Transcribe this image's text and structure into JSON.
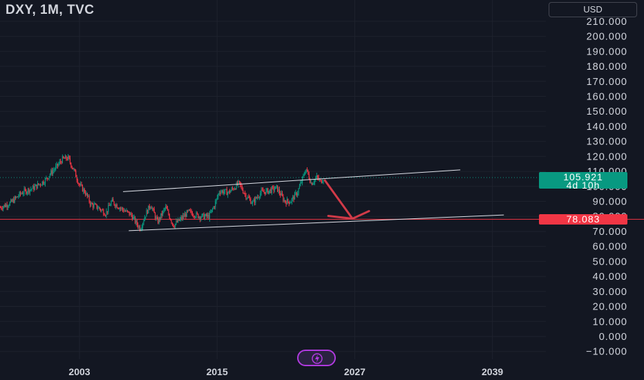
{
  "header": {
    "title": "DXY, 1M, TVC",
    "currency_label": "USD"
  },
  "price_badge": {
    "price": "105.921",
    "countdown": "4d 10h"
  },
  "level_badge": {
    "price": "78.083"
  },
  "colors": {
    "background": "#131722",
    "up": "#089981",
    "down": "#f23645",
    "grid": "#1e222d",
    "axis_text": "#d1d4dc",
    "arrow": "#d13a48",
    "bolt_button": "#b03adf"
  },
  "icons": {
    "bolt": "lightning-bolt-icon"
  },
  "chart_data": {
    "type": "candlestick",
    "symbol": "DXY",
    "interval": "1M",
    "source": "TVC",
    "y_ticks": [
      -10,
      0,
      10,
      20,
      30,
      40,
      50,
      60,
      70,
      80,
      90,
      100,
      110,
      120,
      130,
      140,
      150,
      160,
      170,
      180,
      190,
      200,
      210
    ],
    "y_tick_labels": [
      "−10.000",
      "0.000",
      "10.000",
      "20.000",
      "30.000",
      "40.000",
      "50.000",
      "60.000",
      "70.000",
      "80.000",
      "90.000",
      "100.000",
      "110.000",
      "120.000",
      "130.000",
      "140.000",
      "150.000",
      "160.000",
      "170.000",
      "180.000",
      "190.000",
      "200.000",
      "210.000"
    ],
    "x_ticks": [
      2003,
      2015,
      2027,
      2039
    ],
    "x_tick_labels": [
      "2003",
      "2015",
      "2027",
      "2039"
    ],
    "ylim": [
      -12,
      215
    ],
    "xlim": [
      1996.1,
      2043.0
    ],
    "last_price": 105.921,
    "horizontal_level": 78.083,
    "close_series": [
      {
        "t": 1996.1,
        "v": 86
      },
      {
        "t": 1997.0,
        "v": 89
      },
      {
        "t": 1998.0,
        "v": 96
      },
      {
        "t": 1999.0,
        "v": 99
      },
      {
        "t": 2000.0,
        "v": 104
      },
      {
        "t": 2000.5,
        "v": 109
      },
      {
        "t": 2001.0,
        "v": 113
      },
      {
        "t": 2001.5,
        "v": 118
      },
      {
        "t": 2002.0,
        "v": 119
      },
      {
        "t": 2002.5,
        "v": 111
      },
      {
        "t": 2003.0,
        "v": 101
      },
      {
        "t": 2003.5,
        "v": 96
      },
      {
        "t": 2004.0,
        "v": 88
      },
      {
        "t": 2004.6,
        "v": 86
      },
      {
        "t": 2005.3,
        "v": 82
      },
      {
        "t": 2005.8,
        "v": 90
      },
      {
        "t": 2006.5,
        "v": 86
      },
      {
        "t": 2007.5,
        "v": 81
      },
      {
        "t": 2008.0,
        "v": 75
      },
      {
        "t": 2008.3,
        "v": 72
      },
      {
        "t": 2008.8,
        "v": 82
      },
      {
        "t": 2009.2,
        "v": 88
      },
      {
        "t": 2009.8,
        "v": 76
      },
      {
        "t": 2010.5,
        "v": 86
      },
      {
        "t": 2011.2,
        "v": 74
      },
      {
        "t": 2011.8,
        "v": 78
      },
      {
        "t": 2012.5,
        "v": 83
      },
      {
        "t": 2013.5,
        "v": 80
      },
      {
        "t": 2014.3,
        "v": 80
      },
      {
        "t": 2014.8,
        "v": 88
      },
      {
        "t": 2015.2,
        "v": 97
      },
      {
        "t": 2016.0,
        "v": 96
      },
      {
        "t": 2016.9,
        "v": 102
      },
      {
        "t": 2017.5,
        "v": 94
      },
      {
        "t": 2018.1,
        "v": 89
      },
      {
        "t": 2018.8,
        "v": 96
      },
      {
        "t": 2019.5,
        "v": 97
      },
      {
        "t": 2020.2,
        "v": 99
      },
      {
        "t": 2020.9,
        "v": 90
      },
      {
        "t": 2021.4,
        "v": 90
      },
      {
        "t": 2022.0,
        "v": 96
      },
      {
        "t": 2022.4,
        "v": 104
      },
      {
        "t": 2022.75,
        "v": 112
      },
      {
        "t": 2023.2,
        "v": 102
      },
      {
        "t": 2023.7,
        "v": 106
      },
      {
        "t": 2024.0,
        "v": 103
      },
      {
        "t": 2024.3,
        "v": 105.921
      }
    ],
    "trendlines": [
      {
        "name": "channel-top",
        "from": [
          2006.8,
          96.5
        ],
        "to": [
          2036.2,
          111
        ]
      },
      {
        "name": "channel-bottom",
        "from": [
          2007.3,
          70.5
        ],
        "to": [
          2040.0,
          81
        ]
      }
    ],
    "arrow": {
      "from": [
        2024.4,
        104
      ],
      "to": [
        2026.8,
        78.5
      ]
    }
  }
}
